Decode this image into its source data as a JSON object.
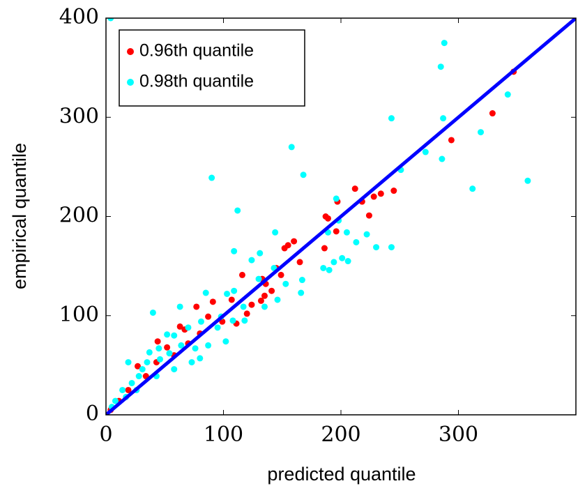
{
  "chart_data": {
    "type": "scatter",
    "xlabel": "predicted quantile",
    "ylabel": "empirical quantile",
    "xlim": [
      0,
      400
    ],
    "ylim": [
      0,
      400
    ],
    "xticks": [
      0,
      100,
      200,
      300
    ],
    "yticks": [
      0,
      100,
      200,
      300,
      400
    ],
    "grid": false,
    "legend": "upper left",
    "reference_line": {
      "color": "#0000ff",
      "x": [
        0,
        400
      ],
      "y": [
        0,
        400
      ]
    },
    "series": [
      {
        "name": "0.96th quantile",
        "color": "#ff0000",
        "x": [
          347,
          329,
          294,
          212,
          218,
          228,
          234,
          245,
          224,
          187,
          189,
          196,
          186,
          197,
          160,
          152,
          155,
          165,
          145,
          149,
          133,
          136,
          141,
          116,
          135,
          107,
          91,
          77,
          63,
          67,
          44,
          27,
          52,
          87,
          99,
          80,
          70,
          58,
          43,
          34,
          19,
          11,
          4,
          120,
          111,
          132,
          124
        ],
        "y": [
          346,
          304,
          277,
          228,
          215,
          220,
          223,
          226,
          201,
          200,
          198,
          185,
          168,
          215,
          175,
          168,
          171,
          154,
          148,
          141,
          137,
          132,
          125,
          141,
          120,
          116,
          114,
          109,
          89,
          86,
          74,
          49,
          68,
          99,
          94,
          82,
          72,
          60,
          53,
          39,
          25,
          14,
          5,
          102,
          92,
          115,
          111
        ]
      },
      {
        "name": "0.98th quantile",
        "color": "#00ffff",
        "x": [
          4,
          288,
          285,
          342,
          287,
          243,
          319,
          251,
          158,
          168,
          90,
          272,
          286,
          312,
          359,
          112,
          196,
          198,
          205,
          189,
          222,
          213,
          230,
          243,
          201,
          206,
          194,
          185,
          190,
          144,
          109,
          131,
          124,
          143,
          130,
          153,
          167,
          166,
          146,
          109,
          117,
          135,
          103,
          85,
          63,
          40,
          95,
          102,
          87,
          80,
          64,
          52,
          54,
          46,
          35,
          19,
          28,
          22,
          14,
          8,
          5,
          108,
          98,
          81,
          70,
          58,
          45,
          37,
          31,
          76,
          73,
          58,
          43,
          26,
          17,
          118
        ],
        "y": [
          400,
          375,
          351,
          323,
          299,
          299,
          285,
          247,
          270,
          242,
          239,
          265,
          258,
          228,
          236,
          206,
          218,
          196,
          184,
          184,
          182,
          174,
          169,
          169,
          158,
          155,
          154,
          148,
          146,
          184,
          165,
          163,
          156,
          148,
          137,
          132,
          136,
          123,
          116,
          125,
          109,
          109,
          122,
          123,
          109,
          103,
          88,
          74,
          70,
          57,
          70,
          81,
          62,
          56,
          53,
          53,
          39,
          32,
          25,
          14,
          8,
          95,
          99,
          94,
          88,
          80,
          67,
          63,
          46,
          67,
          53,
          46,
          39,
          25,
          18,
          95
        ]
      }
    ]
  }
}
